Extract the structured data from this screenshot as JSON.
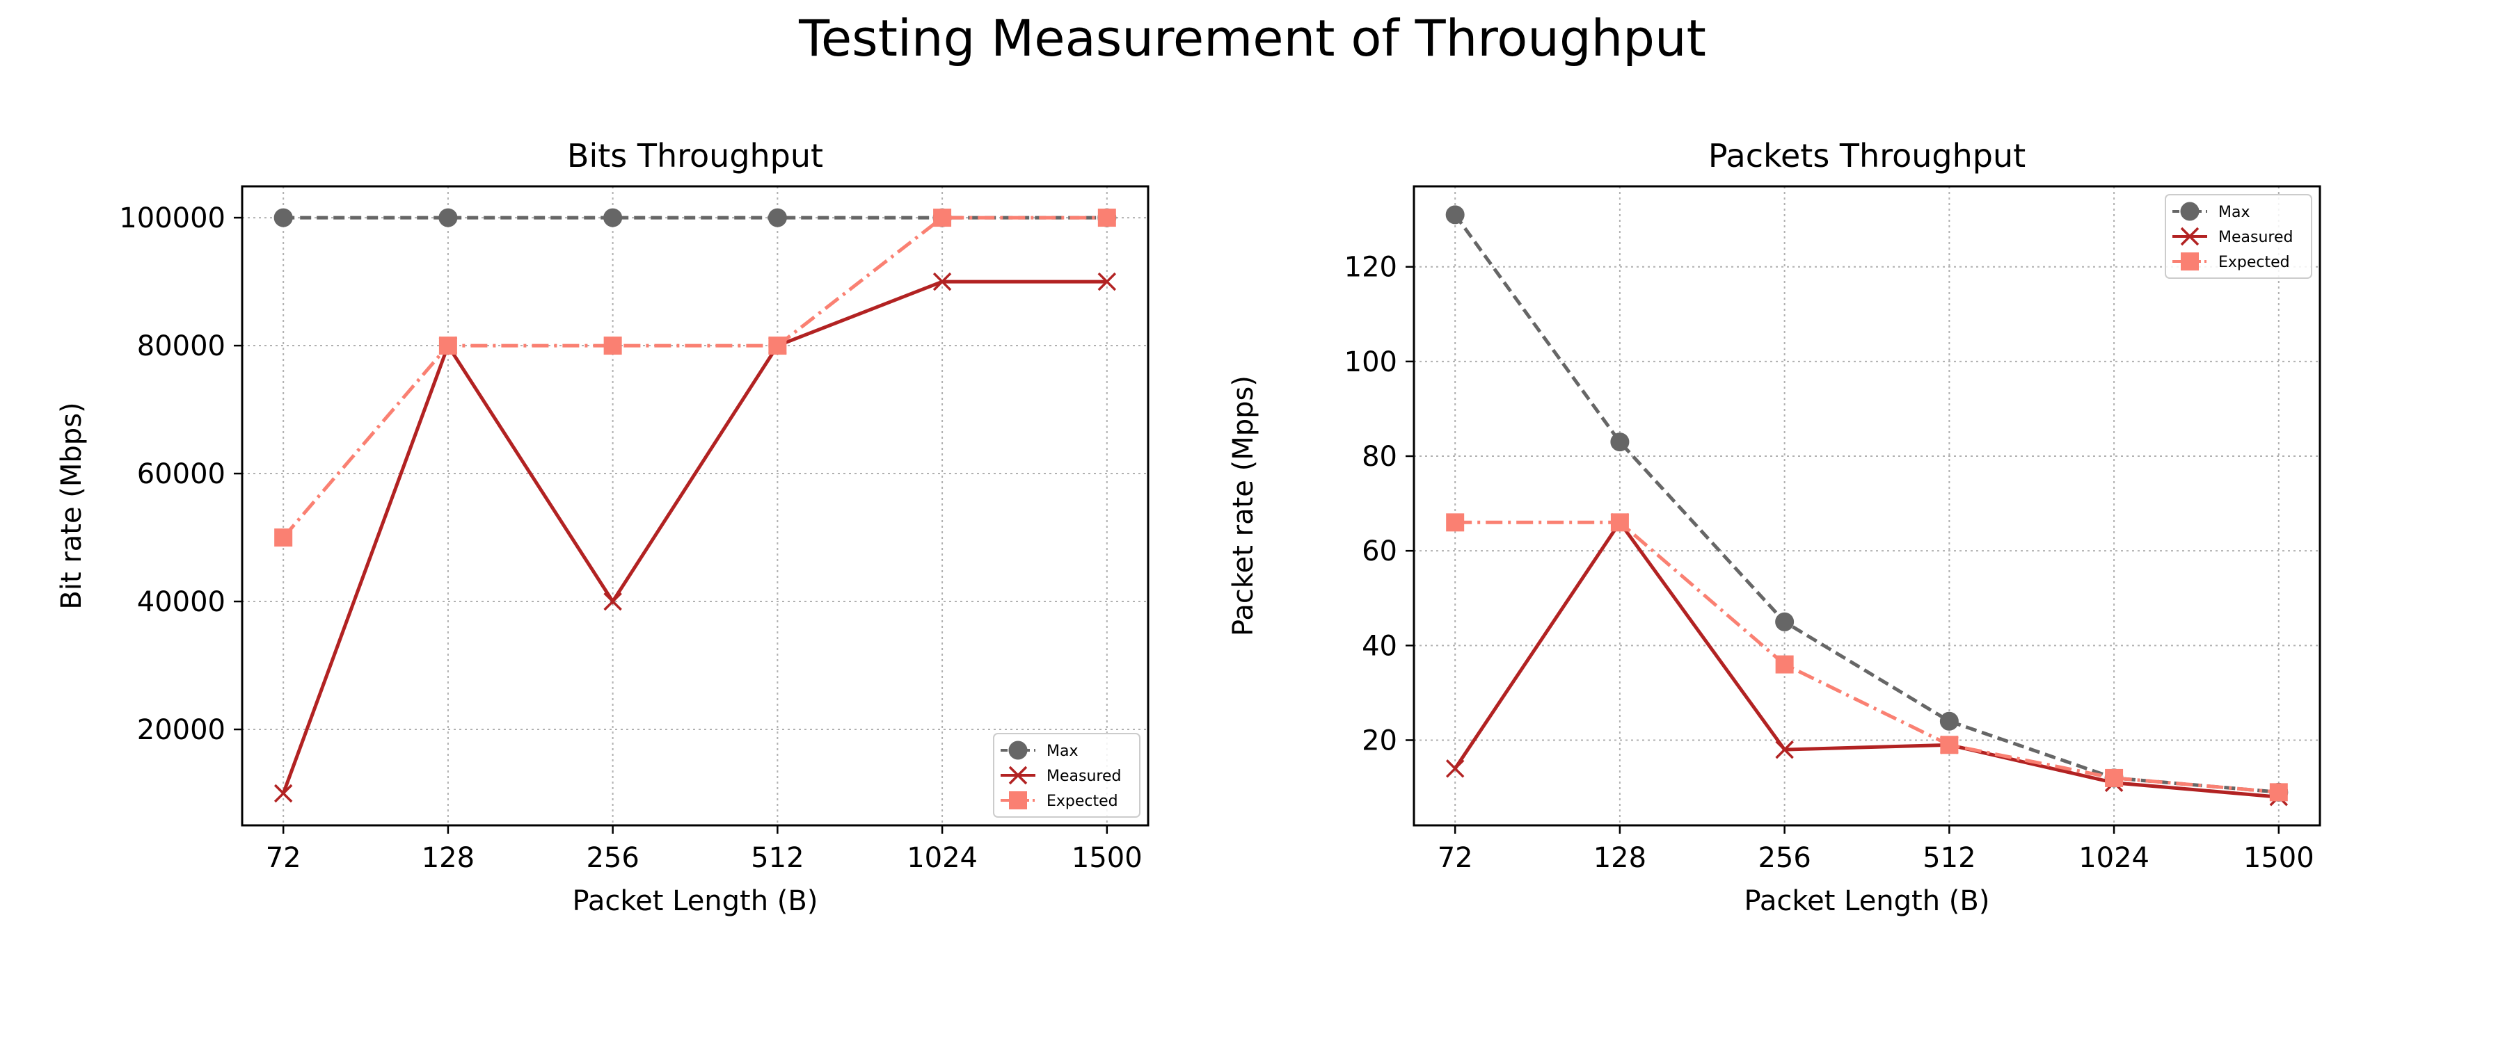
{
  "figure": {
    "title": "Testing Measurement of Throughput"
  },
  "colors": {
    "max": "#666666",
    "measured": "#b22222",
    "expected": "#fa8072"
  },
  "chart_data": [
    {
      "type": "line",
      "title": "Bits Throughput",
      "xlabel": "Packet Length (B)",
      "ylabel": "Bit rate (Mbps)",
      "x_scale": "categorical",
      "categories": [
        "72",
        "128",
        "256",
        "512",
        "1024",
        "1500"
      ],
      "x": [
        72,
        128,
        256,
        512,
        1024,
        1500
      ],
      "ylim": [
        5000,
        104900
      ],
      "yticks": [
        20000,
        40000,
        60000,
        80000,
        100000
      ],
      "grid": true,
      "legend_position": "lower right",
      "series": [
        {
          "name": "Max",
          "values": [
            100000,
            100000,
            100000,
            100000,
            100000,
            100000
          ],
          "style": "dashed",
          "marker": "circle",
          "color_key": "max"
        },
        {
          "name": "Measured",
          "values": [
            10000,
            80000,
            40000,
            80000,
            90000,
            90000
          ],
          "style": "solid",
          "marker": "x",
          "color_key": "measured"
        },
        {
          "name": "Expected",
          "values": [
            50000,
            80000,
            80000,
            80000,
            100000,
            100000
          ],
          "style": "dashdot",
          "marker": "square",
          "color_key": "expected"
        }
      ]
    },
    {
      "type": "line",
      "title": "Packets Throughput",
      "xlabel": "Packet Length (B)",
      "ylabel": "Packet rate (Mpps)",
      "x_scale": "categorical",
      "categories": [
        "72",
        "128",
        "256",
        "512",
        "1024",
        "1500"
      ],
      "x": [
        72,
        128,
        256,
        512,
        1024,
        1500
      ],
      "ylim": [
        2,
        137
      ],
      "yticks": [
        20,
        40,
        60,
        80,
        100,
        120
      ],
      "grid": true,
      "legend_position": "upper right",
      "series": [
        {
          "name": "Max",
          "values": [
            131,
            83,
            45,
            24,
            12,
            9
          ],
          "style": "dashed",
          "marker": "circle",
          "color_key": "max"
        },
        {
          "name": "Measured",
          "values": [
            14,
            66,
            18,
            19,
            11,
            8
          ],
          "style": "solid",
          "marker": "x",
          "color_key": "measured"
        },
        {
          "name": "Expected",
          "values": [
            66,
            66,
            36,
            19,
            12,
            9
          ],
          "style": "dashdot",
          "marker": "square",
          "color_key": "expected"
        }
      ]
    }
  ]
}
